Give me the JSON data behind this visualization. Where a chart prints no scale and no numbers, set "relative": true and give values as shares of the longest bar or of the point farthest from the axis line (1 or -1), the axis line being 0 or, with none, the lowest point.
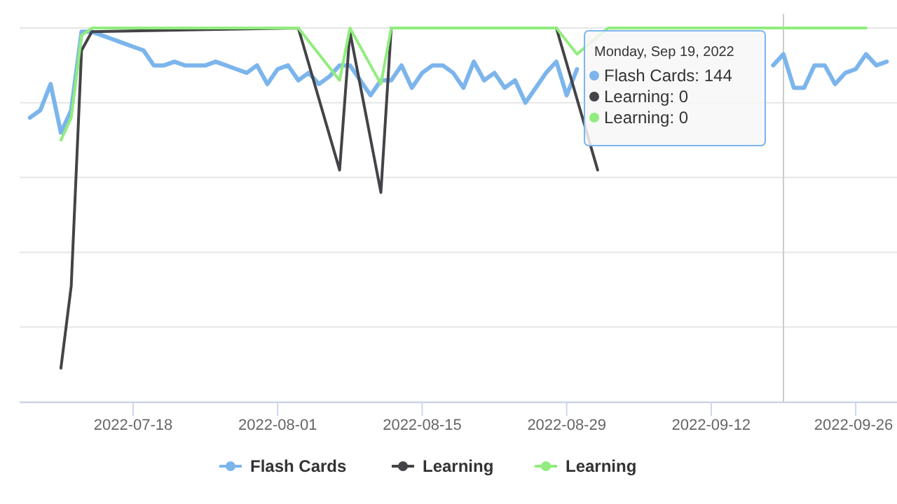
{
  "chart_data": {
    "type": "line",
    "relative": true,
    "grid": "y",
    "legend": "bottom",
    "xlim": [
      "2022-07-07",
      "2022-09-30"
    ],
    "xticks": [
      "2022-07-18",
      "2022-08-01",
      "2022-08-15",
      "2022-08-29",
      "2022-09-12",
      "2022-09-26"
    ],
    "x": [
      "2022-07-08",
      "2022-07-09",
      "2022-07-10",
      "2022-07-11",
      "2022-07-12",
      "2022-07-13",
      "2022-07-14",
      "2022-07-15",
      "2022-07-16",
      "2022-07-17",
      "2022-07-18",
      "2022-07-19",
      "2022-07-20",
      "2022-07-21",
      "2022-07-22",
      "2022-07-23",
      "2022-07-24",
      "2022-07-25",
      "2022-07-26",
      "2022-07-27",
      "2022-07-28",
      "2022-07-29",
      "2022-07-30",
      "2022-07-31",
      "2022-08-01",
      "2022-08-02",
      "2022-08-03",
      "2022-08-04",
      "2022-08-05",
      "2022-08-06",
      "2022-08-07",
      "2022-08-08",
      "2022-08-09",
      "2022-08-10",
      "2022-08-11",
      "2022-08-12",
      "2022-08-13",
      "2022-08-14",
      "2022-08-15",
      "2022-08-16",
      "2022-08-17",
      "2022-08-18",
      "2022-08-19",
      "2022-08-20",
      "2022-08-21",
      "2022-08-22",
      "2022-08-23",
      "2022-08-24",
      "2022-08-25",
      "2022-08-26",
      "2022-08-27",
      "2022-08-28",
      "2022-08-29",
      "2022-08-30",
      "2022-08-31",
      "2022-09-01",
      "2022-09-02",
      "2022-09-03",
      "2022-09-04",
      "2022-09-05",
      "2022-09-06",
      "2022-09-07",
      "2022-09-08",
      "2022-09-09",
      "2022-09-10",
      "2022-09-11",
      "2022-09-12",
      "2022-09-13",
      "2022-09-14",
      "2022-09-15",
      "2022-09-16",
      "2022-09-17",
      "2022-09-18",
      "2022-09-19",
      "2022-09-20",
      "2022-09-21",
      "2022-09-22",
      "2022-09-23",
      "2022-09-24",
      "2022-09-25",
      "2022-09-26",
      "2022-09-27",
      "2022-09-28",
      "2022-09-29"
    ],
    "series": [
      {
        "name": "Flash Cards",
        "color": "#7cb5ec",
        "values": [
          0.76,
          0.78,
          0.85,
          0.72,
          0.78,
          0.99,
          0.99,
          0.98,
          0.97,
          0.96,
          0.95,
          0.94,
          0.9,
          0.9,
          0.91,
          0.9,
          0.9,
          0.9,
          0.91,
          0.9,
          0.89,
          0.88,
          0.9,
          0.85,
          0.89,
          0.9,
          0.86,
          0.88,
          0.85,
          0.87,
          0.9,
          0.9,
          0.86,
          0.82,
          0.86,
          0.86,
          0.9,
          0.84,
          0.88,
          0.9,
          0.9,
          0.88,
          0.84,
          0.91,
          0.86,
          0.88,
          0.84,
          0.86,
          0.8,
          0.84,
          0.88,
          0.91,
          0.82,
          0.89,
          null,
          null,
          null,
          null,
          null,
          null,
          null,
          null,
          null,
          null,
          null,
          null,
          null,
          null,
          null,
          null,
          null,
          null,
          0.9,
          0.93,
          0.84,
          0.84,
          0.9,
          0.9,
          0.85,
          0.88,
          0.89,
          0.93,
          0.9,
          0.91
        ]
      },
      {
        "name": "Learning",
        "color": "#434348",
        "x": [
          "2022-07-11",
          "2022-07-12",
          "2022-07-13",
          "2022-07-14",
          "2022-08-03",
          "2022-08-07",
          "2022-08-08",
          "2022-08-11",
          "2022-08-12",
          "2022-08-28",
          "2022-09-01"
        ],
        "values": [
          0.09,
          0.31,
          0.94,
          0.99,
          1,
          0.62,
          0.99,
          0.56,
          1,
          1,
          0.62
        ]
      },
      {
        "name": "Learning",
        "color": "#90ed7d",
        "x": [
          "2022-07-11",
          "2022-07-12",
          "2022-07-13",
          "2022-07-14",
          "2022-07-24",
          "2022-08-03",
          "2022-08-07",
          "2022-08-08",
          "2022-08-11",
          "2022-08-12",
          "2022-08-20",
          "2022-08-28",
          "2022-08-30",
          "2022-09-02",
          "2022-09-12",
          "2022-09-19",
          "2022-09-27"
        ],
        "values": [
          0.7,
          0.76,
          0.98,
          1,
          1,
          1,
          0.86,
          1,
          0.85,
          1,
          1,
          1,
          0.93,
          1,
          1,
          1,
          1
        ]
      }
    ],
    "ref_lines": [
      {
        "axis": "x",
        "value": "2022-09-19",
        "color": "#cccccc"
      }
    ],
    "annotations": [
      "Monday, Sep 19, 2022",
      "Flash Cards: 144",
      "Learning: 0",
      "Learning: 0"
    ]
  }
}
